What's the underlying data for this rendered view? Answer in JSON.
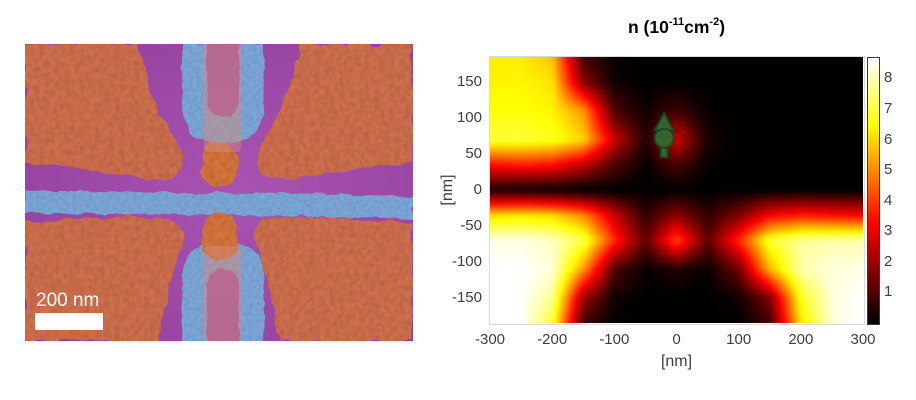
{
  "figure": {
    "background": "#ffffff"
  },
  "sem_panel": {
    "scale_bar_label": "200 nm",
    "colors": {
      "substrate_purple": "#9a46a4",
      "gate_orange": "#cc6f4d",
      "finger_orange": "#d4753e",
      "gate_blue": "#7ba6d6",
      "overlay_strip": "rgba(210,140,120,0.5)",
      "scale_bar": "#ffffff"
    }
  },
  "chart_data": {
    "type": "heatmap",
    "title": "n (10-11cm-2)",
    "title_parts": {
      "prefix": "n (10",
      "exp1": "-11",
      "unit": "cm",
      "exp2": "-2",
      "suffix": ")"
    },
    "xlabel": "[nm]",
    "ylabel": "[nm]",
    "xlim": [
      -300,
      300
    ],
    "ylim": [
      -185,
      185
    ],
    "clim": [
      0,
      8.7
    ],
    "colormap": "hot",
    "grid": true,
    "legend_position": "colorbar-right",
    "xticks": [
      "-300",
      "-200",
      "-100",
      "0",
      "100",
      "200",
      "300"
    ],
    "yticks": [
      "150",
      "100",
      "50",
      "0",
      "-50",
      "-100",
      "-150"
    ],
    "colorbar_ticks": [
      "1",
      "2",
      "3",
      "4",
      "5",
      "6",
      "7",
      "8"
    ],
    "grid_x": [
      -300,
      -250,
      -200,
      -150,
      -100,
      -50,
      0,
      50,
      100,
      150,
      200,
      250,
      300
    ],
    "grid_y": [
      185,
      150,
      110,
      70,
      35,
      0,
      -35,
      -70,
      -110,
      -150,
      -185
    ],
    "values": [
      [
        6.3,
        6.3,
        5.8,
        0.8,
        0.1,
        0.0,
        0.0,
        0.0,
        0.0,
        0.0,
        0.0,
        0.0,
        0.0
      ],
      [
        6.4,
        6.4,
        6.2,
        1.8,
        0.2,
        0.0,
        0.0,
        0.0,
        0.0,
        0.0,
        0.0,
        0.0,
        0.0
      ],
      [
        6.6,
        6.6,
        6.4,
        5.2,
        1.0,
        0.2,
        0.8,
        0.1,
        0.0,
        0.0,
        0.0,
        0.0,
        0.0
      ],
      [
        7.0,
        7.0,
        6.8,
        6.0,
        2.6,
        0.4,
        2.7,
        0.3,
        0.0,
        0.0,
        0.0,
        0.0,
        0.0
      ],
      [
        3.4,
        3.6,
        3.4,
        2.4,
        1.0,
        0.1,
        0.9,
        0.1,
        0.0,
        0.0,
        0.0,
        0.0,
        0.0
      ],
      [
        0.3,
        0.2,
        0.1,
        0.0,
        0.0,
        0.0,
        0.0,
        0.0,
        0.0,
        0.0,
        0.0,
        0.0,
        0.0
      ],
      [
        6.0,
        6.2,
        6.0,
        5.0,
        2.6,
        0.6,
        1.8,
        0.6,
        1.6,
        3.2,
        3.6,
        3.4,
        3.2
      ],
      [
        8.5,
        8.5,
        8.2,
        7.2,
        3.8,
        1.2,
        4.2,
        1.2,
        3.8,
        7.0,
        7.8,
        8.0,
        8.0
      ],
      [
        8.7,
        8.7,
        8.4,
        5.2,
        1.0,
        0.1,
        0.4,
        0.1,
        1.4,
        5.6,
        8.0,
        8.4,
        8.5
      ],
      [
        8.7,
        8.7,
        7.8,
        2.0,
        0.2,
        0.0,
        0.0,
        0.0,
        0.2,
        1.6,
        6.8,
        8.4,
        8.7
      ],
      [
        8.7,
        8.7,
        7.0,
        0.8,
        0.0,
        0.0,
        0.0,
        0.0,
        0.0,
        0.8,
        6.2,
        8.4,
        8.7
      ]
    ],
    "marker": {
      "name": "spin-up-marker",
      "x": -20,
      "y": 72,
      "fill": "#2f6d36",
      "outline": "#1a4a21"
    }
  }
}
